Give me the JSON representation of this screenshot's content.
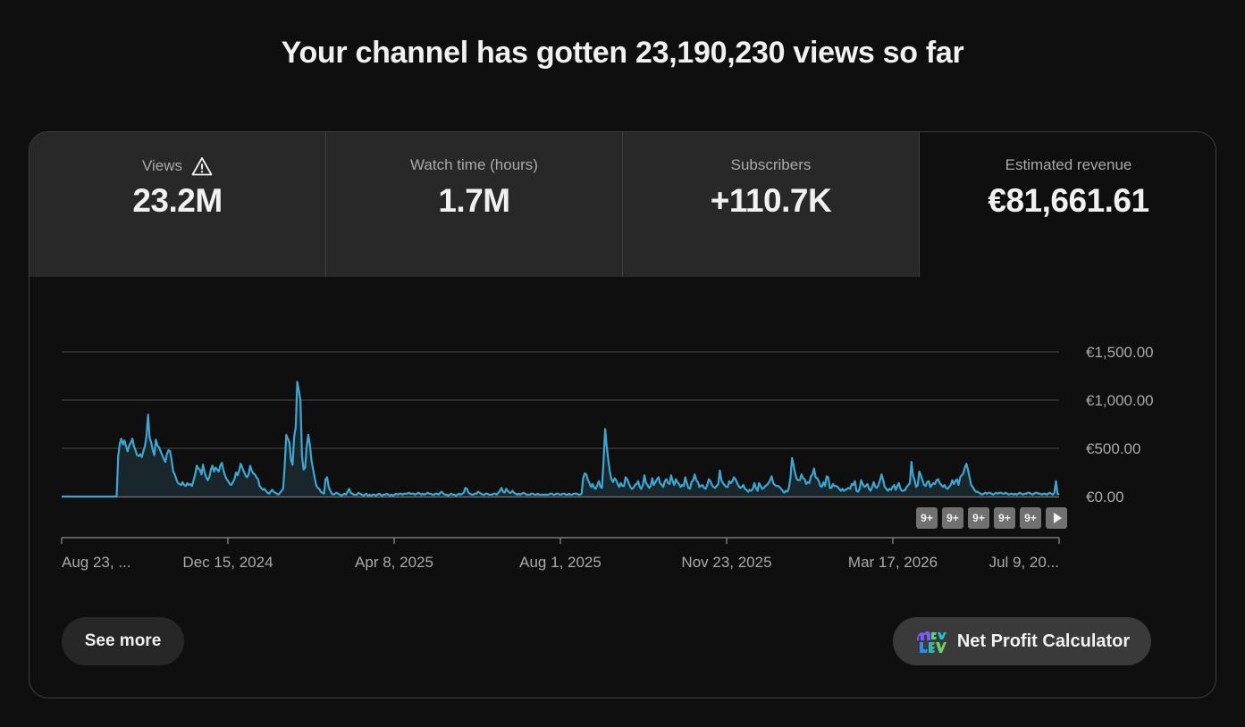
{
  "headline": "Your channel has gotten 23,190,230 views so far",
  "metrics": [
    {
      "label": "Views",
      "value": "23.2M",
      "warning": true
    },
    {
      "label": "Watch time (hours)",
      "value": "1.7M"
    },
    {
      "label": "Subscribers",
      "value": "+110.7K"
    },
    {
      "label": "Estimated revenue",
      "value": "€81,661.61",
      "active": true
    }
  ],
  "chart_data": {
    "type": "area",
    "series": [
      {
        "name": "Estimated revenue",
        "color": "#3ea6d1"
      }
    ],
    "y_tick_labels": [
      "€1,500.00",
      "€1,000.00",
      "€500.00",
      "€0.00"
    ],
    "y_ticks": [
      1500,
      1000,
      500,
      0
    ],
    "ylim": [
      0,
      1500
    ],
    "x_tick_labels": [
      "Aug 23, ...",
      "Dec 15, 2024",
      "Apr 8, 2025",
      "Aug 1, 2025",
      "Nov 23, 2025",
      "Mar 17, 2026",
      "Jul 9, 20..."
    ],
    "grid": true,
    "values": [
      0,
      0,
      0,
      0,
      0,
      0,
      0,
      0,
      0,
      0,
      0,
      0,
      0,
      0,
      0,
      0,
      0,
      0,
      0,
      0,
      0,
      0,
      0,
      0,
      0,
      0,
      0,
      0,
      0,
      0,
      0,
      0,
      0,
      0,
      0,
      0,
      420,
      550,
      600,
      540,
      580,
      520,
      470,
      530,
      560,
      600,
      520,
      480,
      430,
      420,
      440,
      410,
      470,
      520,
      630,
      850,
      610,
      560,
      480,
      430,
      590,
      530,
      510,
      470,
      430,
      390,
      360,
      440,
      480,
      470,
      380,
      260,
      230,
      180,
      140,
      130,
      120,
      150,
      120,
      110,
      140,
      120,
      130,
      110,
      170,
      230,
      320,
      290,
      280,
      230,
      330,
      250,
      200,
      170,
      200,
      280,
      320,
      260,
      300,
      280,
      260,
      320,
      350,
      270,
      220,
      180,
      160,
      130,
      120,
      150,
      180,
      250,
      220,
      270,
      340,
      300,
      260,
      220,
      200,
      230,
      320,
      270,
      240,
      230,
      200,
      180,
      110,
      90,
      70,
      80,
      60,
      40,
      30,
      50,
      70,
      50,
      40,
      30,
      20,
      40,
      60,
      80,
      320,
      640,
      600,
      560,
      380,
      330,
      620,
      720,
      1190,
      1100,
      1000,
      420,
      280,
      300,
      520,
      640,
      540,
      380,
      290,
      200,
      120,
      90,
      80,
      50,
      40,
      30,
      180,
      200,
      100,
      60,
      30,
      20,
      30,
      40,
      30,
      20,
      10,
      20,
      30,
      20,
      50,
      80,
      40,
      30,
      20,
      20,
      20,
      40,
      30,
      20,
      10,
      20,
      30,
      10,
      20,
      10,
      20,
      20,
      10,
      20,
      30,
      20,
      10,
      20,
      20,
      30,
      20,
      10,
      20,
      10,
      20,
      30,
      20,
      30,
      30,
      20,
      30,
      30,
      30,
      40,
      30,
      30,
      30,
      20,
      30,
      40,
      30,
      20,
      30,
      20,
      30,
      40,
      30,
      30,
      20,
      20,
      30,
      30,
      20,
      40,
      50,
      30,
      20,
      20,
      10,
      20,
      30,
      20,
      20,
      10,
      20,
      30,
      20,
      30,
      40,
      90,
      80,
      40,
      30,
      20,
      20,
      30,
      30,
      50,
      40,
      30,
      20,
      20,
      30,
      30,
      20,
      20,
      20,
      30,
      30,
      20,
      40,
      60,
      90,
      50,
      40,
      80,
      60,
      40,
      40,
      60,
      40,
      30,
      20,
      30,
      20,
      30,
      40,
      30,
      20,
      20,
      20,
      30,
      30,
      20,
      20,
      30,
      20,
      20,
      20,
      20,
      20,
      20,
      20,
      30,
      30,
      20,
      20,
      30,
      30,
      20,
      20,
      30,
      30,
      20,
      20,
      30,
      20,
      20,
      30,
      30,
      30,
      20,
      20,
      30,
      190,
      240,
      230,
      170,
      140,
      100,
      130,
      90,
      80,
      120,
      160,
      100,
      90,
      370,
      700,
      520,
      380,
      260,
      180,
      150,
      190,
      170,
      130,
      100,
      140,
      110,
      110,
      200,
      180,
      140,
      100,
      80,
      90,
      120,
      130,
      160,
      100,
      80,
      120,
      220,
      140,
      120,
      90,
      110,
      190,
      120,
      150,
      180,
      200,
      140,
      120,
      100,
      160,
      180,
      140,
      130,
      220,
      160,
      120,
      180,
      150,
      130,
      100,
      120,
      110,
      200,
      140,
      90,
      80,
      150,
      170,
      230,
      170,
      150,
      100,
      110,
      120,
      90,
      80,
      120,
      180,
      160,
      120,
      100,
      90,
      110,
      130,
      270,
      170,
      140,
      120,
      100,
      100,
      160,
      140,
      160,
      200,
      180,
      140,
      110,
      90,
      100,
      120,
      80,
      70,
      50,
      70,
      60,
      80,
      140,
      90,
      60,
      140,
      110,
      80,
      90,
      110,
      120,
      140,
      170,
      210,
      140,
      120,
      110,
      110,
      100,
      80,
      60,
      40,
      60,
      50,
      90,
      200,
      400,
      320,
      240,
      180,
      170,
      170,
      230,
      190,
      180,
      130,
      150,
      140,
      210,
      230,
      290,
      200,
      190,
      160,
      110,
      100,
      150,
      110,
      210,
      200,
      90,
      90,
      130,
      110,
      110,
      100,
      80,
      60,
      80,
      60,
      70,
      80,
      90,
      80,
      130,
      120,
      160,
      60,
      50,
      80,
      170,
      130,
      100,
      110,
      130,
      80,
      60,
      100,
      150,
      100,
      90,
      120,
      170,
      230,
      170,
      100,
      80,
      60,
      80,
      70,
      100,
      120,
      70,
      110,
      140,
      80,
      60,
      60,
      70,
      100,
      120,
      140,
      360,
      220,
      170,
      100,
      120,
      260,
      220,
      170,
      120,
      110,
      150,
      160,
      100,
      120,
      140,
      130,
      170,
      180,
      140,
      120,
      100,
      120,
      90,
      80,
      100,
      120,
      170,
      130,
      160,
      180,
      120,
      200,
      220,
      240,
      300,
      340,
      280,
      200,
      120,
      100,
      70,
      50,
      50,
      40,
      30,
      20,
      30,
      40,
      30,
      40,
      40,
      30,
      20,
      30,
      40,
      30,
      40,
      40,
      30,
      30,
      40,
      30,
      20,
      30,
      30,
      20,
      30,
      20,
      30,
      40,
      30,
      20,
      30,
      30,
      40,
      40,
      30,
      20,
      30,
      40,
      40,
      30,
      30,
      20,
      30,
      30,
      20,
      30,
      40,
      30,
      20,
      40,
      160,
      30,
      20
    ]
  },
  "marker_label": "9+",
  "marker_count": 5,
  "buttons": {
    "see_more": "See more",
    "net_profit": "Net Profit Calculator"
  }
}
